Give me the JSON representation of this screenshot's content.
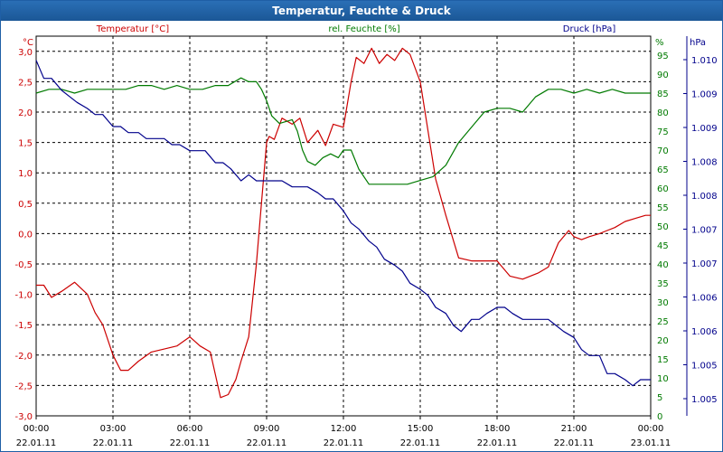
{
  "chart_data": {
    "type": "line",
    "title": "Temperatur, Feuchte & Druck",
    "series_labels": {
      "temp": "Temperatur [°C]",
      "hum": "rel. Feuchte [%]",
      "press": "Druck [hPa]"
    },
    "axes": {
      "temp": {
        "unit": "°C",
        "ylim": [
          -3.0,
          3.25
        ],
        "ticks": [
          "3,0",
          "2,5",
          "2,0",
          "1,5",
          "1,0",
          "0,5",
          "0,0",
          "-0,5",
          "-1,0",
          "-1,5",
          "-2,0",
          "-2,5",
          "-3,0"
        ],
        "color": "#cc0000"
      },
      "hum": {
        "unit": "%",
        "ylim": [
          0,
          100
        ],
        "ticks": [
          "95",
          "90",
          "85",
          "80",
          "75",
          "70",
          "65",
          "60",
          "55",
          "50",
          "45",
          "40",
          "35",
          "30",
          "25",
          "20",
          "15",
          "10",
          "5",
          "0"
        ],
        "color": "#007a00"
      },
      "press": {
        "unit": "hPa",
        "ticks": [
          "1.010",
          "1.009",
          "1.009",
          "1.008",
          "1.008",
          "1.007",
          "1.007",
          "1.006",
          "1.006",
          "1.005",
          "1.005"
        ],
        "color": "#00008b"
      }
    },
    "x_ticks": [
      {
        "time": "00:00",
        "date": "22.01.11"
      },
      {
        "time": "03:00",
        "date": "22.01.11"
      },
      {
        "time": "06:00",
        "date": "22.01.11"
      },
      {
        "time": "09:00",
        "date": "22.01.11"
      },
      {
        "time": "12:00",
        "date": "22.01.11"
      },
      {
        "time": "15:00",
        "date": "22.01.11"
      },
      {
        "time": "18:00",
        "date": "22.01.11"
      },
      {
        "time": "21:00",
        "date": "22.01.11"
      },
      {
        "time": "00:00",
        "date": "23.01.11"
      }
    ],
    "grid": true,
    "series": [
      {
        "name": "Temperatur [°C]",
        "key": "temp",
        "color": "#cc0000",
        "x": [
          0,
          0.3,
          0.6,
          1,
          1.5,
          2,
          2.3,
          2.6,
          3,
          3.3,
          3.6,
          4,
          4.5,
          5,
          5.5,
          6,
          6.4,
          6.8,
          7.2,
          7.5,
          7.8,
          8,
          8.3,
          8.6,
          8.8,
          9,
          9.1,
          9.3,
          9.6,
          10,
          10.3,
          10.6,
          11,
          11.3,
          11.6,
          12,
          12.3,
          12.5,
          12.8,
          13.1,
          13.4,
          13.7,
          14,
          14.3,
          14.6,
          15,
          15.3,
          15.6,
          16,
          16.5,
          17,
          17.5,
          18,
          18.5,
          19,
          19.3,
          19.6,
          20,
          20.4,
          20.8,
          21,
          21.3,
          21.6,
          22,
          22.3,
          22.6,
          23,
          23.4,
          23.8,
          24
        ],
        "y": [
          -0.85,
          -0.85,
          -1.05,
          -0.95,
          -0.8,
          -1.0,
          -1.3,
          -1.5,
          -2.0,
          -2.25,
          -2.25,
          -2.1,
          -1.95,
          -1.9,
          -1.85,
          -1.7,
          -1.85,
          -1.95,
          -2.7,
          -2.65,
          -2.4,
          -2.1,
          -1.7,
          -0.5,
          0.5,
          1.5,
          1.6,
          1.55,
          1.9,
          1.8,
          1.9,
          1.5,
          1.7,
          1.45,
          1.8,
          1.75,
          2.5,
          2.9,
          2.8,
          3.05,
          2.8,
          2.95,
          2.85,
          3.05,
          2.95,
          2.5,
          1.7,
          0.9,
          0.3,
          -0.4,
          -0.45,
          -0.45,
          -0.45,
          -0.7,
          -0.75,
          -0.7,
          -0.65,
          -0.55,
          -0.15,
          0.05,
          -0.05,
          -0.1,
          -0.05,
          0.0,
          0.05,
          0.1,
          0.2,
          0.25,
          0.3,
          0.3
        ]
      },
      {
        "name": "rel. Feuchte [%]",
        "key": "hum",
        "color": "#007a00",
        "x": [
          0,
          0.5,
          1,
          1.5,
          2,
          2.5,
          3,
          3.5,
          4,
          4.5,
          5,
          5.5,
          6,
          6.5,
          7,
          7.5,
          8,
          8.3,
          8.6,
          8.8,
          9,
          9.2,
          9.5,
          10,
          10.2,
          10.4,
          10.6,
          10.9,
          11.2,
          11.5,
          11.8,
          12,
          12.3,
          12.6,
          13,
          13.5,
          14,
          14.5,
          15,
          15.5,
          16,
          16.5,
          17,
          17.5,
          18,
          18.5,
          19,
          19.5,
          20,
          20.5,
          21,
          21.5,
          22,
          22.5,
          23,
          23.5,
          24
        ],
        "y": [
          85,
          86,
          86,
          85,
          86,
          86,
          86,
          86,
          87,
          87,
          86,
          87,
          86,
          86,
          87,
          87,
          89,
          88,
          88,
          86,
          83,
          79,
          77,
          78,
          75,
          70,
          67,
          66,
          68,
          69,
          68,
          70,
          70,
          65,
          61,
          61,
          61,
          61,
          62,
          63,
          66,
          72,
          76,
          80,
          81,
          81,
          80,
          84,
          86,
          86,
          85,
          86,
          85,
          86,
          85,
          85,
          85
        ]
      },
      {
        "name": "Druck [hPa]",
        "key": "press",
        "color": "#00008b",
        "x": [
          0,
          0.3,
          0.6,
          1,
          1.3,
          1.6,
          2,
          2.3,
          2.6,
          3,
          3.3,
          3.6,
          4,
          4.3,
          4.6,
          5,
          5.3,
          5.6,
          6,
          6.3,
          6.6,
          7,
          7.3,
          7.6,
          8,
          8.3,
          8.6,
          9,
          9.3,
          9.6,
          10,
          10.3,
          10.6,
          11,
          11.3,
          11.6,
          12,
          12.3,
          12.6,
          13,
          13.3,
          13.6,
          14,
          14.3,
          14.6,
          15,
          15.3,
          15.6,
          16,
          16.3,
          16.6,
          17,
          17.3,
          17.6,
          18,
          18.3,
          18.6,
          19,
          19.3,
          19.6,
          20,
          20.3,
          20.6,
          21,
          21.3,
          21.6,
          22,
          22.3,
          22.6,
          23,
          23.3,
          23.6,
          24
        ],
        "y": [
          1.0102,
          1.0099,
          1.0099,
          1.0097,
          1.0096,
          1.0095,
          1.0094,
          1.0093,
          1.0093,
          1.0091,
          1.0091,
          1.009,
          1.009,
          1.0089,
          1.0089,
          1.0089,
          1.0088,
          1.0088,
          1.0087,
          1.0087,
          1.0087,
          1.0085,
          1.0085,
          1.0084,
          1.0082,
          1.0083,
          1.0082,
          1.0082,
          1.0082,
          1.0082,
          1.0081,
          1.0081,
          1.0081,
          1.008,
          1.0079,
          1.0079,
          1.0077,
          1.0075,
          1.0074,
          1.0072,
          1.0071,
          1.0069,
          1.0068,
          1.0067,
          1.0065,
          1.0064,
          1.0063,
          1.0061,
          1.006,
          1.0058,
          1.0057,
          1.0059,
          1.0059,
          1.006,
          1.0061,
          1.0061,
          1.006,
          1.0059,
          1.0059,
          1.0059,
          1.0059,
          1.0058,
          1.0057,
          1.0056,
          1.0054,
          1.0053,
          1.0053,
          1.005,
          1.005,
          1.0049,
          1.0048,
          1.0049,
          1.0049
        ]
      }
    ]
  }
}
